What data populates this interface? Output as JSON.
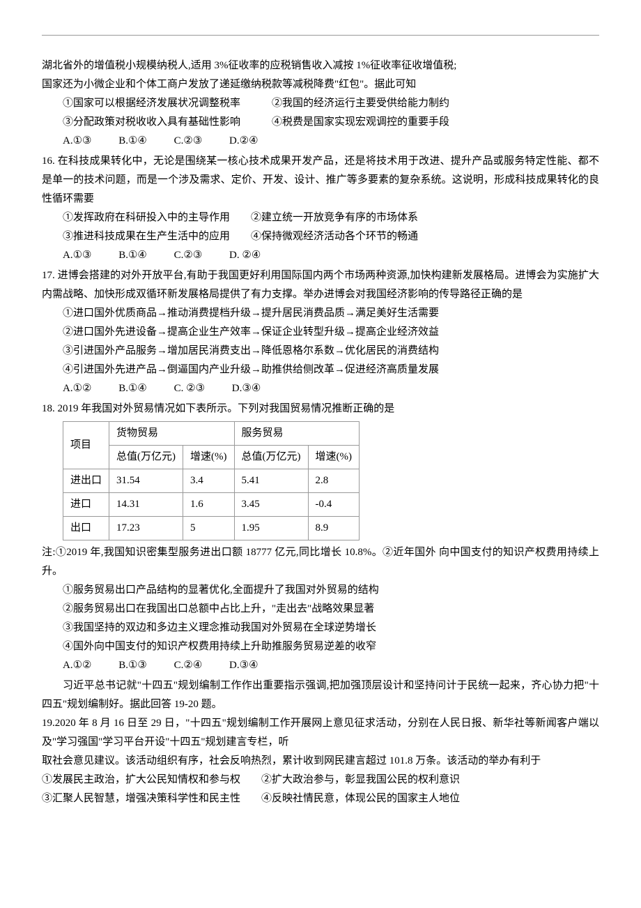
{
  "q15": {
    "line1": "湖北省外的增值税小规模纳税人,适用 3%征收率的应税销售收入减按 1%征收率征收增值税;",
    "line2": "国家还为小微企业和个体工商户发放了递延缴纳税款等减税降费\"红包\"。据此可知",
    "s1": "①国家可以根据经济发展状况调整税率",
    "s2": "②我国的经济运行主要受供给能力制约",
    "s3": "③分配政策对税收收入具有基础性影响",
    "s4": "④税费是国家实现宏观调控的重要手段",
    "a": "A.①③",
    "b": "B.①④",
    "c": "C.②③",
    "d": "D.②④"
  },
  "q16": {
    "line1": "16. 在科技成果转化中，无论是围绕某一核心技术成果开发产品，还是将技术用于改进、提升产品或服务特定性能、都不是单一的技术问题，而是一个涉及需求、定价、开发、设计、推广等多要素的复杂系统。这说明，形成科技成果转化的良性循环需要",
    "s1": "①发挥政府在科研投入中的主导作用",
    "s2": "②建立统一开放竞争有序的市场体系",
    "s3": "③推进科技成果在生产生活中的应用",
    "s4": "④保持微观经济活动各个环节的畅通",
    "a": "A.①③",
    "b": "B.①④",
    "c": "C.②③",
    "d": "D. ②④"
  },
  "q17": {
    "line1": "17. 进博会搭建的对外开放平台,有助于我国更好利用国际国内两个市场两种资源,加快构建新发展格局。进博会为实施扩大内需战略、加快形成双循环新发展格局提供了有力支撑。举办进博会对我国经济影响的传导路径正确的是",
    "s1": "①进口国外优质商品→推动消费提档升级→提升居民消费品质→满足美好生活需要",
    "s2": "②进口国外先进设备→提高企业生产效率→保证企业转型升级→提高企业经济效益",
    "s3": "③引进国外产品服务→增加居民消费支出→降低恩格尔系数→优化居民的消费结构",
    "s4": "④引进国外先进产品→倒逼国内产业升级→助推供给侧改革→促进经济高质量发展",
    "a": "A.①②",
    "b": "B.①④",
    "c": "C. ②③",
    "d": "D.③④"
  },
  "q18": {
    "title": "18. 2019 年我国对外贸易情况如下表所示。下列对我国贸易情况推断正确的是",
    "table": {
      "h_item": "项目",
      "h_goods": "货物贸易",
      "h_service": "服务贸易",
      "h_total": "总值(万亿元)",
      "h_growth": "增速(%)",
      "rows": [
        {
          "label": "进出口",
          "gv": "31.54",
          "gg": "3.4",
          "sv": "5.41",
          "sg": "2.8"
        },
        {
          "label": "进口",
          "gv": "14.31",
          "gg": "1.6",
          "sv": "3.45",
          "sg": "-0.4"
        },
        {
          "label": "出口",
          "gv": "17.23",
          "gg": "5",
          "sv": "1.95",
          "sg": "8.9"
        }
      ]
    },
    "note": "注:①2019 年,我国知识密集型服务进出口额 18777 亿元,同比增长 10.8%。②近年国外 向中国支付的知识产权费用持续上升。",
    "s1": "①服务贸易出口产品结构的显著优化,全面提升了我国对外贸易的结构",
    "s2": "②服务贸易出口在我国出口总额中占比上升，\"走出去\"战略效果显著",
    "s3": "③我国坚持的双边和多边主义理念推动我国对外贸易在全球逆势增长",
    "s4": "④国外向中国支付的知识产权费用持续上升助推服务贸易逆差的收窄",
    "a": "A.①②",
    "b": "B.①③",
    "c": "C.②④",
    "d": "D.③④"
  },
  "intro19": {
    "text": "习近平总书记就\"十四五\"规划编制工作作出重要指示强调,把加强顶层设计和坚持问计于民统一起来，齐心协力把\"十四五\"规划编制好。据此回答 19-20 题。"
  },
  "q19": {
    "line1": "19.2020 年 8 月 16 日至 29 日，\"十四五\"规划编制工作开展网上意见征求活动，分别在人民日报、新华社等新闻客户端以及\"学习强国\"学习平台开设\"十四五\"规划建言专栏，听",
    "line2": "取社会意见建议。该活动组织有序，社会反响热烈，累计收到网民建言超过 101.8 万条。该活动的举办有利于",
    "s1": "①发展民主政治，扩大公民知情权和参与权",
    "s2": "②扩大政治参与，彰显我国公民的权利意识",
    "s3": "③汇聚人民智慧，增强决策科学性和民主性",
    "s4": "④反映社情民意，体现公民的国家主人地位"
  }
}
